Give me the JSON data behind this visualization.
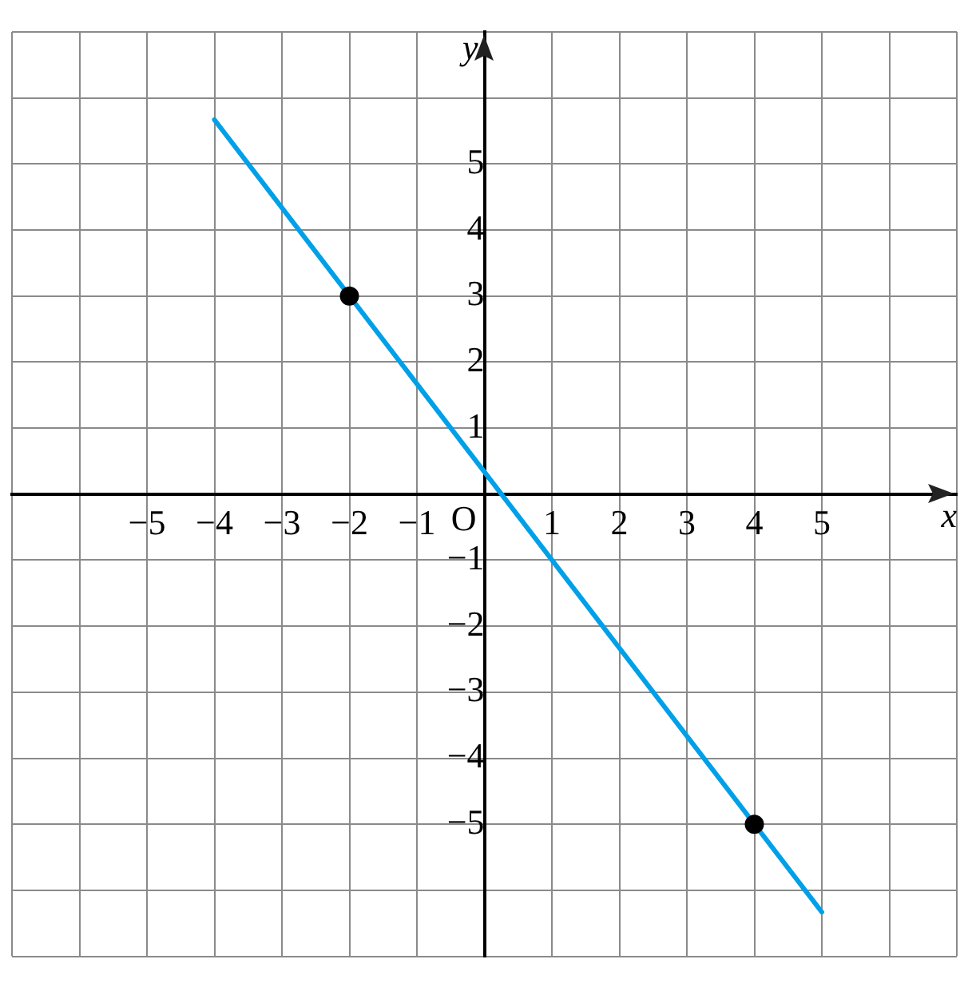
{
  "chart_data": {
    "type": "line",
    "xlabel": "x",
    "ylabel": "y",
    "xlim": [
      -7,
      7
    ],
    "ylim": [
      -7,
      7
    ],
    "xticks": [
      {
        "value": -7,
        "label": null
      },
      {
        "value": -6,
        "label": null
      },
      {
        "value": -5,
        "label": "−5"
      },
      {
        "value": -4,
        "label": "−4"
      },
      {
        "value": -3,
        "label": "−3"
      },
      {
        "value": -2,
        "label": "−2"
      },
      {
        "value": -1,
        "label": "−1"
      },
      {
        "value": 0,
        "label": null
      },
      1,
      2,
      3,
      4,
      5,
      {
        "value": 6,
        "label": null
      },
      {
        "value": 7,
        "label": null
      }
    ],
    "yticks": [
      {
        "value": -7,
        "label": null
      },
      {
        "value": -6,
        "label": null
      },
      {
        "value": -5,
        "label": "−5"
      },
      {
        "value": -4,
        "label": "−4"
      },
      {
        "value": -3,
        "label": "−3"
      },
      {
        "value": -2,
        "label": "−2"
      },
      {
        "value": -1,
        "label": "−1"
      },
      {
        "value": 0,
        "label": null
      },
      1,
      2,
      3,
      4,
      5,
      {
        "value": 6,
        "label": null
      },
      {
        "value": 7,
        "label": null
      }
    ],
    "grid": true,
    "legend": false,
    "annotations": [
      "O"
    ],
    "series": [
      {
        "color": "#00a0e9",
        "x": [
          -4,
          5
        ],
        "values": [
          5.67,
          -6.33
        ],
        "marker": "none"
      },
      {
        "type": "scatter",
        "color": "#000000",
        "x": [
          -2,
          4
        ],
        "values": [
          3,
          -5
        ],
        "marker": "circle"
      }
    ]
  }
}
